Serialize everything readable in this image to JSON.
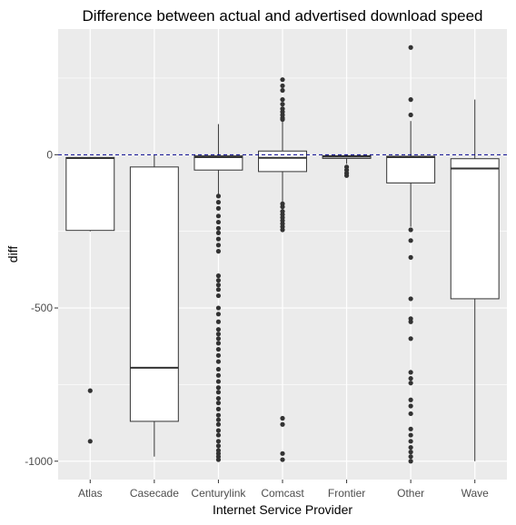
{
  "chart_data": {
    "type": "box",
    "title": "Difference between actual and advertised download speed",
    "xlabel": "Internet Service Provider",
    "ylabel": "diff",
    "ylim": [
      -1060,
      410
    ],
    "y_ticks": [
      0,
      -500,
      -1000
    ],
    "y_tick_labels": [
      "0",
      "-500",
      "-1000"
    ],
    "categories": [
      "Atlas",
      "Casecade",
      "Centurylink",
      "Comcast",
      "Frontier",
      "Other",
      "Wave"
    ],
    "reference_line": {
      "y": 0,
      "style": "dashed",
      "color": "#00008b"
    },
    "boxes": [
      {
        "category": "Atlas",
        "whisker_low": -250,
        "q1": -247,
        "median": -11,
        "q3": -9,
        "whisker_high": -7,
        "outliers": [
          -770,
          -935
        ]
      },
      {
        "category": "Casecade",
        "whisker_low": -985,
        "q1": -870,
        "median": -695,
        "q3": -40,
        "whisker_high": -2,
        "outliers": []
      },
      {
        "category": "Centurylink",
        "whisker_low": -130,
        "q1": -50,
        "median": -8,
        "q3": -3,
        "whisker_high": 100,
        "outliers": [
          -135,
          -155,
          -175,
          -200,
          -220,
          -240,
          -255,
          -275,
          -295,
          -315,
          -395,
          -410,
          -425,
          -440,
          -460,
          -500,
          -520,
          -545,
          -570,
          -585,
          -600,
          -615,
          -635,
          -655,
          -675,
          -700,
          -720,
          -740,
          -760,
          -775,
          -795,
          -810,
          -830,
          -850,
          -865,
          -880,
          -900,
          -915,
          -935,
          -950,
          -965,
          -975,
          -985,
          -995
        ]
      },
      {
        "category": "Comcast",
        "whisker_low": -240,
        "q1": -55,
        "median": -10,
        "q3": 12,
        "whisker_high": 110,
        "outliers": [
          115,
          120,
          130,
          140,
          150,
          165,
          180,
          210,
          225,
          245,
          -160,
          -170,
          -185,
          -195,
          -205,
          -215,
          -225,
          -235,
          -245,
          -860,
          -880,
          -975,
          -995
        ]
      },
      {
        "category": "Frontier",
        "whisker_low": -30,
        "q1": -12,
        "median": -6,
        "q3": -3,
        "whisker_high": 0,
        "outliers": [
          -40,
          -50,
          -60,
          -68
        ]
      },
      {
        "category": "Other",
        "whisker_low": -235,
        "q1": -92,
        "median": -8,
        "q3": -5,
        "whisker_high": 110,
        "outliers": [
          350,
          180,
          130,
          -245,
          -280,
          -335,
          -470,
          -535,
          -545,
          -600,
          -710,
          -730,
          -745,
          -800,
          -820,
          -845,
          -895,
          -915,
          -935,
          -955,
          -970,
          -985,
          -1000
        ]
      },
      {
        "category": "Wave",
        "whisker_low": -1000,
        "q1": -470,
        "median": -45,
        "q3": -13,
        "whisker_high": 180,
        "outliers": []
      }
    ],
    "grid": true,
    "legend": "none",
    "colors": {
      "panel_background": "#ebebeb",
      "grid": "#ffffff",
      "box_fill": "#ffffff",
      "box_line": "#333333",
      "point": "#333333",
      "reference_line": "#00008b"
    }
  }
}
